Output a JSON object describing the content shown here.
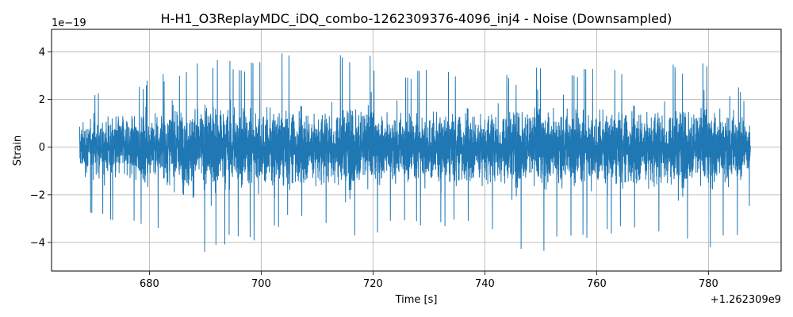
{
  "chart_data": {
    "type": "line",
    "title": "H-H1_O3ReplayMDC_iDQ_combo-1262309376-4096_inj4 - Noise (Downsampled)",
    "xlabel": "Time [s]",
    "ylabel": "Strain",
    "x_offset_label": "+1.262309e9",
    "y_exponent_label": "1e−19",
    "xlim": [
      662.5,
      793.0
    ],
    "ylim": [
      -5.2,
      4.95
    ],
    "grid": true,
    "line_color": "#1f77b4",
    "xticks": [
      680,
      700,
      720,
      740,
      760,
      780
    ],
    "xtick_labels": [
      "680",
      "700",
      "720",
      "740",
      "760",
      "780"
    ],
    "yticks": [
      -4,
      -2,
      0,
      2,
      4
    ],
    "ytick_labels": [
      "−4",
      "−2",
      "0",
      "2",
      "4"
    ],
    "series": [
      {
        "x_range": [
          667.5,
          787.5
        ],
        "amplitude_envelope": {
          "x": [
            667.5,
            675,
            680,
            690,
            700,
            705,
            710,
            719,
            720,
            727,
            740,
            746,
            750,
            760,
            770,
            780,
            785,
            787.5
          ],
          "y_max": [
            2.0,
            2.6,
            2.9,
            3.8,
            3.6,
            4.2,
            3.4,
            4.5,
            3.5,
            3.3,
            3.2,
            3.0,
            3.6,
            3.3,
            3.4,
            3.7,
            3.1,
            1.5
          ],
          "y_min": [
            -2.8,
            -3.5,
            -3.6,
            -4.5,
            -3.9,
            -3.2,
            -3.4,
            -4.3,
            -3.8,
            -3.3,
            -3.6,
            -4.7,
            -4.6,
            -3.7,
            -3.9,
            -4.4,
            -4.2,
            -2.5
          ]
        }
      }
    ]
  }
}
